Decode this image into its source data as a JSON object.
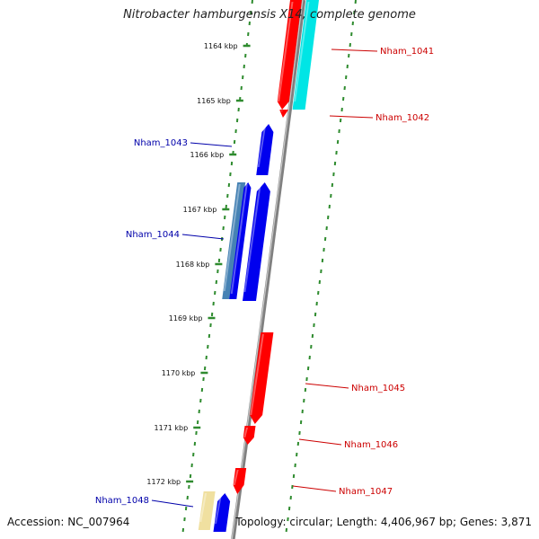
{
  "title": "Nitrobacter hamburgensis X14, complete genome",
  "footer": {
    "accession": "Accession: NC_007964",
    "topology": "Topology: circular; Length: 4,406,967 bp; Genes: 3,871"
  },
  "colors": {
    "tick": "#2e8b2e",
    "backbone": "#808080",
    "forward_label": "#cc0000",
    "reverse_label": "#0000aa",
    "red_gene": "#ff0000",
    "cyan_gene": "#00e5e5",
    "blue_gene": "#0000ee",
    "steel_gene": "#4682b4",
    "pale_gene": "#f0e0a0"
  },
  "ruler": {
    "unit": "kbp",
    "ticks": [
      "1164 kbp",
      "1165 kbp",
      "1166 kbp",
      "1167 kbp",
      "1168 kbp",
      "1169 kbp",
      "1170 kbp",
      "1171 kbp",
      "1172 kbp"
    ]
  },
  "gene_labels": [
    {
      "text": "Nham_1041",
      "strand": "forward"
    },
    {
      "text": "Nham_1042",
      "strand": "forward"
    },
    {
      "text": "Nham_1043",
      "strand": "reverse"
    },
    {
      "text": "Nham_1044",
      "strand": "reverse"
    },
    {
      "text": "Nham_1045",
      "strand": "forward"
    },
    {
      "text": "Nham_1046",
      "strand": "forward"
    },
    {
      "text": "Nham_1047",
      "strand": "forward"
    },
    {
      "text": "Nham_1048",
      "strand": "reverse"
    }
  ]
}
